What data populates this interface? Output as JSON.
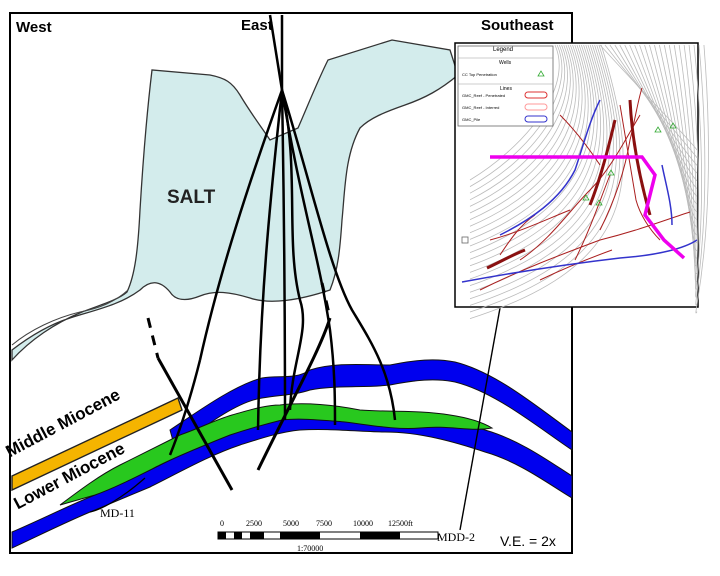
{
  "headers": {
    "west": "West",
    "east": "East",
    "southeast": "Southeast"
  },
  "salt_label": "SALT",
  "formations": {
    "middle": "Middle Miocene",
    "lower": "Lower Miocene"
  },
  "wells": {
    "left": "MD-11",
    "right": "MDD-2"
  },
  "scale": {
    "ticks": [
      "0",
      "2500",
      "5000",
      "7500",
      "10000",
      "12500ft"
    ],
    "ratio": "1:70000"
  },
  "vertical_exaggeration": "V.E. = 2x",
  "inset": {
    "legend_title": "Legend",
    "wells_heading": "Wells",
    "wells_item": "CC Top Penetration",
    "lines_heading": "Lines",
    "lines_items": [
      "GMC_Reef - Penetrated",
      "GMC_Reef - Interred",
      "GMC_Pile"
    ]
  },
  "colors": {
    "salt": "#d3ecec",
    "middle_miocene": "#f5b400",
    "lower_miocene": "#28c81e",
    "blue_layer": "#0000ee",
    "section_line": "#ee00ee",
    "faults": "#aa1f1f"
  }
}
